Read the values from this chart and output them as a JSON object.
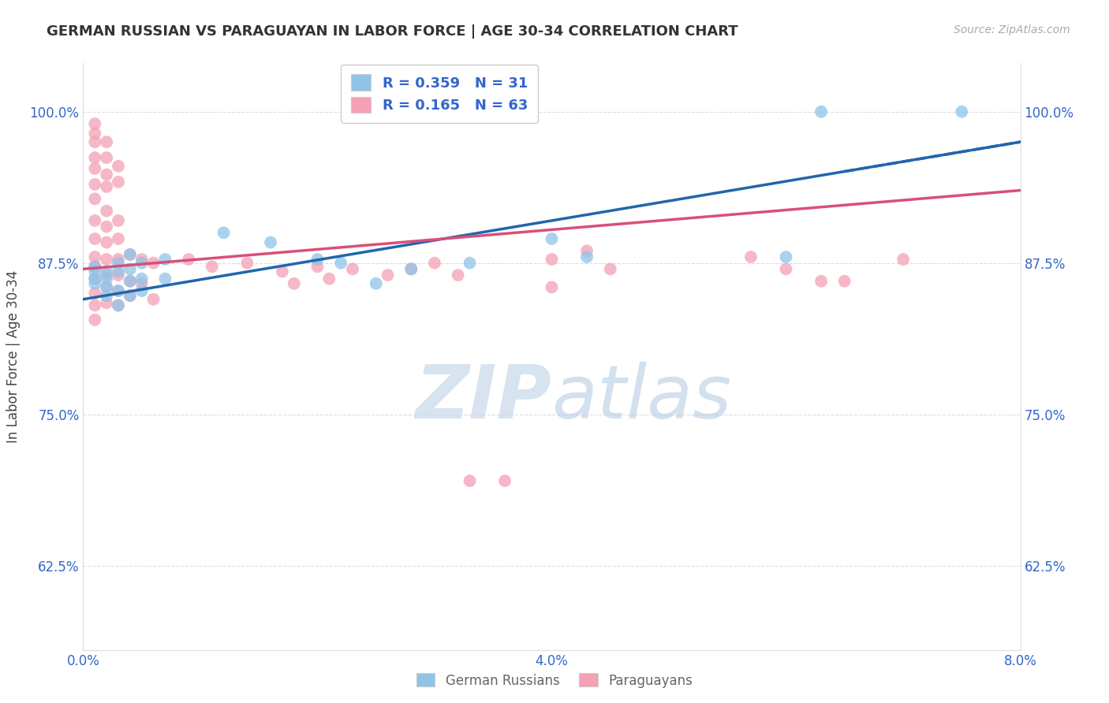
{
  "title": "GERMAN RUSSIAN VS PARAGUAYAN IN LABOR FORCE | AGE 30-34 CORRELATION CHART",
  "source_text": "Source: ZipAtlas.com",
  "ylabel": "In Labor Force | Age 30-34",
  "xmin": 0.0,
  "xmax": 0.08,
  "ymin": 0.555,
  "ymax": 1.04,
  "ytick_labels": [
    "62.5%",
    "75.0%",
    "87.5%",
    "100.0%"
  ],
  "ytick_vals": [
    0.625,
    0.75,
    0.875,
    1.0
  ],
  "xtick_positions": [
    0.0,
    0.01,
    0.02,
    0.03,
    0.04,
    0.05,
    0.06,
    0.07,
    0.08
  ],
  "xtick_labels": [
    "0.0%",
    "",
    "",
    "",
    "4.0%",
    "",
    "",
    "",
    "8.0%"
  ],
  "legend_labels": [
    "German Russians",
    "Paraguayans"
  ],
  "blue_color": "#8fc4e8",
  "pink_color": "#f4a0b5",
  "blue_line_color": "#2166ac",
  "pink_line_color": "#d94f7a",
  "watermark_zip": "ZIP",
  "watermark_atlas": "atlas",
  "blue_scatter": [
    [
      0.001,
      0.872
    ],
    [
      0.001,
      0.862
    ],
    [
      0.001,
      0.858
    ],
    [
      0.001,
      0.868
    ],
    [
      0.002,
      0.868
    ],
    [
      0.002,
      0.855
    ],
    [
      0.002,
      0.862
    ],
    [
      0.002,
      0.848
    ],
    [
      0.003,
      0.875
    ],
    [
      0.003,
      0.868
    ],
    [
      0.003,
      0.852
    ],
    [
      0.003,
      0.84
    ],
    [
      0.004,
      0.882
    ],
    [
      0.004,
      0.87
    ],
    [
      0.004,
      0.86
    ],
    [
      0.004,
      0.848
    ],
    [
      0.005,
      0.875
    ],
    [
      0.005,
      0.862
    ],
    [
      0.005,
      0.852
    ],
    [
      0.007,
      0.878
    ],
    [
      0.007,
      0.862
    ],
    [
      0.012,
      0.9
    ],
    [
      0.016,
      0.892
    ],
    [
      0.02,
      0.878
    ],
    [
      0.022,
      0.875
    ],
    [
      0.025,
      0.858
    ],
    [
      0.028,
      0.87
    ],
    [
      0.033,
      0.875
    ],
    [
      0.04,
      0.895
    ],
    [
      0.043,
      0.88
    ],
    [
      0.06,
      0.88
    ],
    [
      0.063,
      1.0
    ],
    [
      0.075,
      1.0
    ]
  ],
  "pink_scatter": [
    [
      0.001,
      0.99
    ],
    [
      0.001,
      0.982
    ],
    [
      0.001,
      0.975
    ],
    [
      0.001,
      0.962
    ],
    [
      0.001,
      0.953
    ],
    [
      0.001,
      0.94
    ],
    [
      0.001,
      0.928
    ],
    [
      0.001,
      0.91
    ],
    [
      0.001,
      0.895
    ],
    [
      0.001,
      0.88
    ],
    [
      0.001,
      0.872
    ],
    [
      0.001,
      0.862
    ],
    [
      0.001,
      0.85
    ],
    [
      0.001,
      0.84
    ],
    [
      0.001,
      0.828
    ],
    [
      0.002,
      0.975
    ],
    [
      0.002,
      0.962
    ],
    [
      0.002,
      0.948
    ],
    [
      0.002,
      0.938
    ],
    [
      0.002,
      0.918
    ],
    [
      0.002,
      0.905
    ],
    [
      0.002,
      0.892
    ],
    [
      0.002,
      0.878
    ],
    [
      0.002,
      0.865
    ],
    [
      0.002,
      0.855
    ],
    [
      0.002,
      0.842
    ],
    [
      0.003,
      0.955
    ],
    [
      0.003,
      0.942
    ],
    [
      0.003,
      0.91
    ],
    [
      0.003,
      0.895
    ],
    [
      0.003,
      0.878
    ],
    [
      0.003,
      0.865
    ],
    [
      0.003,
      0.852
    ],
    [
      0.003,
      0.84
    ],
    [
      0.004,
      0.882
    ],
    [
      0.004,
      0.86
    ],
    [
      0.004,
      0.848
    ],
    [
      0.005,
      0.878
    ],
    [
      0.005,
      0.858
    ],
    [
      0.006,
      0.875
    ],
    [
      0.006,
      0.845
    ],
    [
      0.009,
      0.878
    ],
    [
      0.011,
      0.872
    ],
    [
      0.014,
      0.875
    ],
    [
      0.017,
      0.868
    ],
    [
      0.018,
      0.858
    ],
    [
      0.02,
      0.872
    ],
    [
      0.021,
      0.862
    ],
    [
      0.023,
      0.87
    ],
    [
      0.026,
      0.865
    ],
    [
      0.028,
      0.87
    ],
    [
      0.03,
      0.875
    ],
    [
      0.032,
      0.865
    ],
    [
      0.033,
      0.695
    ],
    [
      0.036,
      0.695
    ],
    [
      0.04,
      0.878
    ],
    [
      0.04,
      0.855
    ],
    [
      0.043,
      0.885
    ],
    [
      0.045,
      0.87
    ],
    [
      0.057,
      0.88
    ],
    [
      0.06,
      0.87
    ],
    [
      0.063,
      0.86
    ],
    [
      0.065,
      0.86
    ],
    [
      0.07,
      0.878
    ]
  ]
}
